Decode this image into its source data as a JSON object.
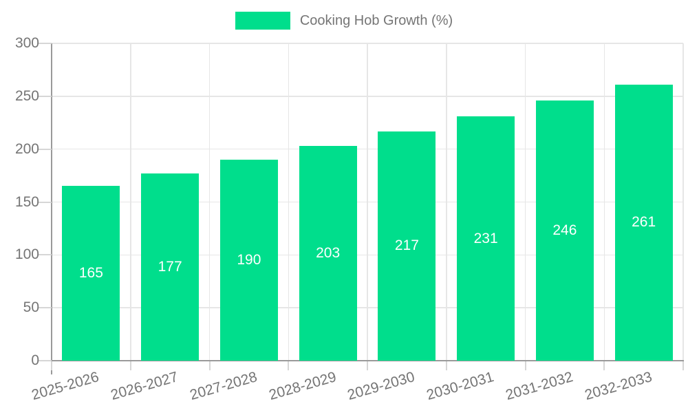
{
  "legend": {
    "label": "Cooking Hob Growth (%)"
  },
  "chart_data": {
    "type": "bar",
    "title": "",
    "xlabel": "",
    "ylabel": "",
    "categories": [
      "2025-2026",
      "2026-2027",
      "2027-2028",
      "2028-2029",
      "2029-2030",
      "2030-2031",
      "2031-2032",
      "2032-2033"
    ],
    "series": [
      {
        "name": "Cooking Hob Growth (%)",
        "values": [
          165,
          177,
          190,
          203,
          217,
          231,
          246,
          261
        ]
      }
    ],
    "value_labels_shown": true,
    "value_label_position": "inside-center",
    "ylim": [
      0,
      300
    ],
    "yticks": [
      0,
      50,
      100,
      150,
      200,
      250,
      300
    ],
    "grid": true,
    "legend_position": "top-center",
    "x_label_rotation_deg": -16,
    "colors": {
      "bar": "#00de8c",
      "value_label": "#ffffff",
      "axis_text": "#757575",
      "legend_text": "#757575",
      "gridline": "#e6e6e6",
      "tick": "#d6d6d6",
      "axis_line": "#9a9a9a",
      "background": "#ffffff"
    }
  }
}
